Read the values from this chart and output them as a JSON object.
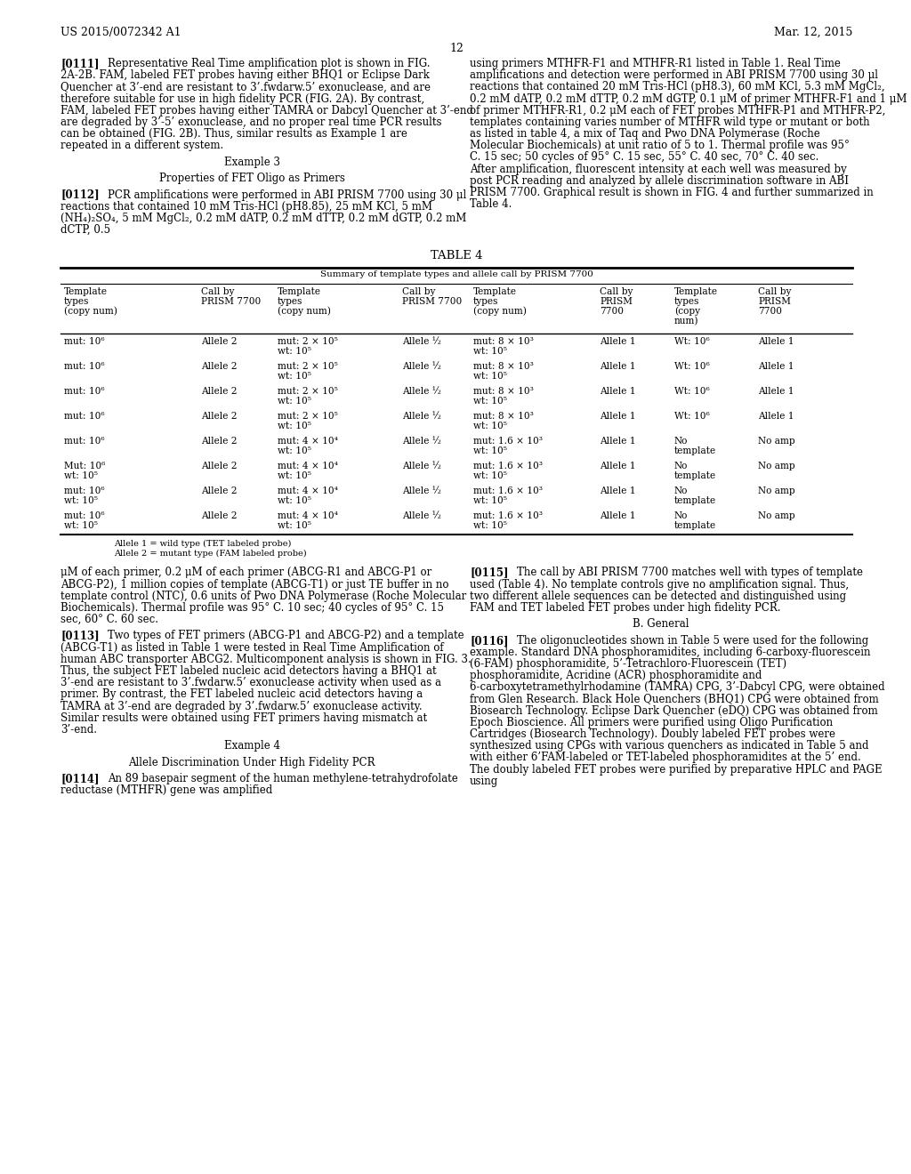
{
  "bg_color": "#ffffff",
  "header_left": "US 2015/0072342 A1",
  "header_right": "Mar. 12, 2015",
  "page_number": "12",
  "para_0111": "[0111]   Representative Real Time amplification plot is shown in FIG. 2A-2B. FAM, labeled FET probes having either BHQ1 or Eclipse Dark Quencher at 3’-end are resistant to 3’.fwdarw.5’ exonuclease, and are therefore suitable for use in high fidelity PCR (FIG. 2A). By contrast, FAM, labeled FET probes having either TAMRA or Dabcyl Quencher at 3’-end are degraded by 3’-5’ exonuclease, and no proper real time PCR results can be obtained (FIG. 2B). Thus, similar results as Example 1 are repeated in a different system.",
  "para_right_0111": "using primers MTHFR-F1 and MTHFR-R1 listed in Table 1. Real Time amplifications and detection were performed in ABI PRISM 7700 using 30 μl reactions that contained 20 mM Tris-HCl (pH8.3), 60 mM KCl, 5.3 mM MgCl₂, 0.2 mM dATP, 0.2 mM dTTP, 0.2 mM dGTP, 0.1 μM of primer MTHFR-F1 and 1 μM of primer MTHFR-R1, 0.2 μM each of FET probes MTHFR-P1 and MTHFR-P2, templates containing varies number of MTHFR wild type or mutant or both as listed in table 4, a mix of Taq and Pwo DNA Polymerase (Roche Molecular Biochemicals) at unit ratio of 5 to 1. Thermal profile was 95° C. 15 sec; 50 cycles of 95° C. 15 sec, 55° C. 40 sec, 70° C. 40 sec. After amplification, fluorescent intensity at each well was measured by post PCR reading and analyzed by allele discrimination software in ABI PRISM 7700. Graphical result is shown in FIG. 4 and further summarized in Table 4.",
  "example3": "Example 3",
  "properties": "Properties of FET Oligo as Primers",
  "para_0112": "[0112]   PCR amplifications were performed in ABI PRISM 7700 using 30 μl reactions that contained 10 mM Tris-HCl (pH8.85), 25 mM KCl, 5 mM (NH₄)₂SO₄, 5 mM MgCl₂, 0.2 mM dATP, 0.2 mM dTTP, 0.2 mM dGTP, 0.2 mM dCTP, 0.5",
  "table_title": "TABLE 4",
  "table_subtitle": "Summary of template types and allele call by PRISM 7700",
  "table_headers": [
    "Template\ntypes\n(copy num)",
    "Call by\nPRISM 7700",
    "Template\ntypes\n(copy num)",
    "Call by\nPRISM 7700",
    "Template\ntypes\n(copy num)",
    "Call by\nPRISM\n7700",
    "Template\ntypes\n(copy\nnum)",
    "Call by\nPRISM\n7700"
  ],
  "table_rows": [
    [
      "mut: 10⁶",
      "Allele 2",
      "mut: 2 × 10⁵\nwt: 10⁵",
      "Allele ½",
      "mut: 8 × 10³\nwt: 10⁵",
      "Allele 1",
      "Wt: 10⁶",
      "Allele 1"
    ],
    [
      "mut: 10⁶",
      "Allele 2",
      "mut: 2 × 10⁵\nwt: 10⁵",
      "Allele ½",
      "mut: 8 × 10³\nwt: 10⁵",
      "Allele 1",
      "Wt: 10⁶",
      "Allele 1"
    ],
    [
      "mut: 10⁶",
      "Allele 2",
      "mut: 2 × 10⁵\nwt: 10⁵",
      "Allele ½",
      "mut: 8 × 10³\nwt: 10⁵",
      "Allele 1",
      "Wt: 10⁶",
      "Allele 1"
    ],
    [
      "mut: 10⁶",
      "Allele 2",
      "mut: 2 × 10⁵\nwt: 10⁵",
      "Allele ½",
      "mut: 8 × 10³\nwt: 10⁵",
      "Allele 1",
      "Wt: 10⁶",
      "Allele 1"
    ],
    [
      "mut: 10⁶",
      "Allele 2",
      "mut: 4 × 10⁴\nwt: 10⁵",
      "Allele ½",
      "mut: 1.6 × 10³\nwt: 10⁵",
      "Allele 1",
      "No\ntemplate",
      "No amp"
    ],
    [
      "Mut: 10⁶\nwt: 10⁵",
      "Allele 2",
      "mut: 4 × 10⁴\nwt: 10⁵",
      "Allele ½",
      "mut: 1.6 × 10³\nwt: 10⁵",
      "Allele 1",
      "No\ntemplate",
      "No amp"
    ],
    [
      "mut: 10⁶\nwt: 10⁵",
      "Allele 2",
      "mut: 4 × 10⁴\nwt: 10⁵",
      "Allele ½",
      "mut: 1.6 × 10³\nwt: 10⁵",
      "Allele 1",
      "No\ntemplate",
      "No amp"
    ],
    [
      "mut: 10⁶\nwt: 10⁵",
      "Allele 2",
      "mut: 4 × 10⁴\nwt: 10⁵",
      "Allele ½",
      "mut: 1.6 × 10³\nwt: 10⁵",
      "Allele 1",
      "No\ntemplate",
      "No amp"
    ]
  ],
  "table_footnotes": [
    "Allele 1 = wild type (TET labeled probe)",
    "Allele 2 = mutant type (FAM labeled probe)"
  ],
  "para_bot_left_cont": "μM of each primer, 0.2 μM of each primer (ABCG-R1 and ABCG-P1 or ABCG-P2), 1 million copies of template (ABCG-T1) or just TE buffer in no template control (NTC), 0.6 units of Pwo DNA Polymerase (Roche Molecular Biochemicals). Thermal profile was 95° C. 10 sec; 40 cycles of 95° C. 15 sec, 60° C. 60 sec.",
  "para_0113": "[0113]   Two types of FET primers (ABCG-P1 and ABCG-P2) and a template (ABCG-T1) as listed in Table 1 were tested in Real Time Amplification of human ABC transporter ABCG2. Multicomponent analysis is shown in FIG. 3. Thus, the subject FET labeled nucleic acid detectors having a BHQ1 at 3’-end are resistant to 3’.fwdarw.5’ exonuclease activity when used as a primer. By contrast, the FET labeled nucleic acid detectors having a TAMRA at 3’-end are degraded by 3’.fwdarw.5’ exonuclease activity. Similar results were obtained using FET primers having mismatch at 3’-end.",
  "example4": "Example 4",
  "allele_disc": "Allele Discrimination Under High Fidelity PCR",
  "para_0114": "[0114]   An 89 basepair segment of the human methylene-tetrahydrofolate reductase (MTHFR) gene was amplified",
  "para_0115": "[0115]   The call by ABI PRISM 7700 matches well with types of template used (Table 4). No template controls give no amplification signal. Thus, two different allele sequences can be detected and distinguished using FAM and TET labeled FET probes under high fidelity PCR.",
  "b_general": "B. General",
  "para_0116": "[0116]   The oligonucleotides shown in Table 5 were used for the following example. Standard DNA phosphoramidites, including 6-carboxy-fluorescein (6-FAM) phosphoramidite, 5’-Tetrachloro-Fluorescein (TET) phosphoramidite, Acridine (ACR) phosphoramidite and 6-carboxytetramethylrhodamine (TAMRA) CPG, 3’-Dabcyl CPG, were obtained from Glen Research. Black Hole Quenchers (BHQ1) CPG were obtained from Biosearch Technology. Eclipse Dark Quencher (eDQ) CPG was obtained from Epoch Bioscience. All primers were purified using Oligo Purification Cartridges (Biosearch Technology). Doubly labeled FET probes were synthesized using CPGs with various quenchers as indicated in Table 5 and with either 6’FAM-labeled or TET-labeled phosphoramidites at the 5’ end. The doubly labeled FET probes were purified by preparative HPLC and PAGE using"
}
